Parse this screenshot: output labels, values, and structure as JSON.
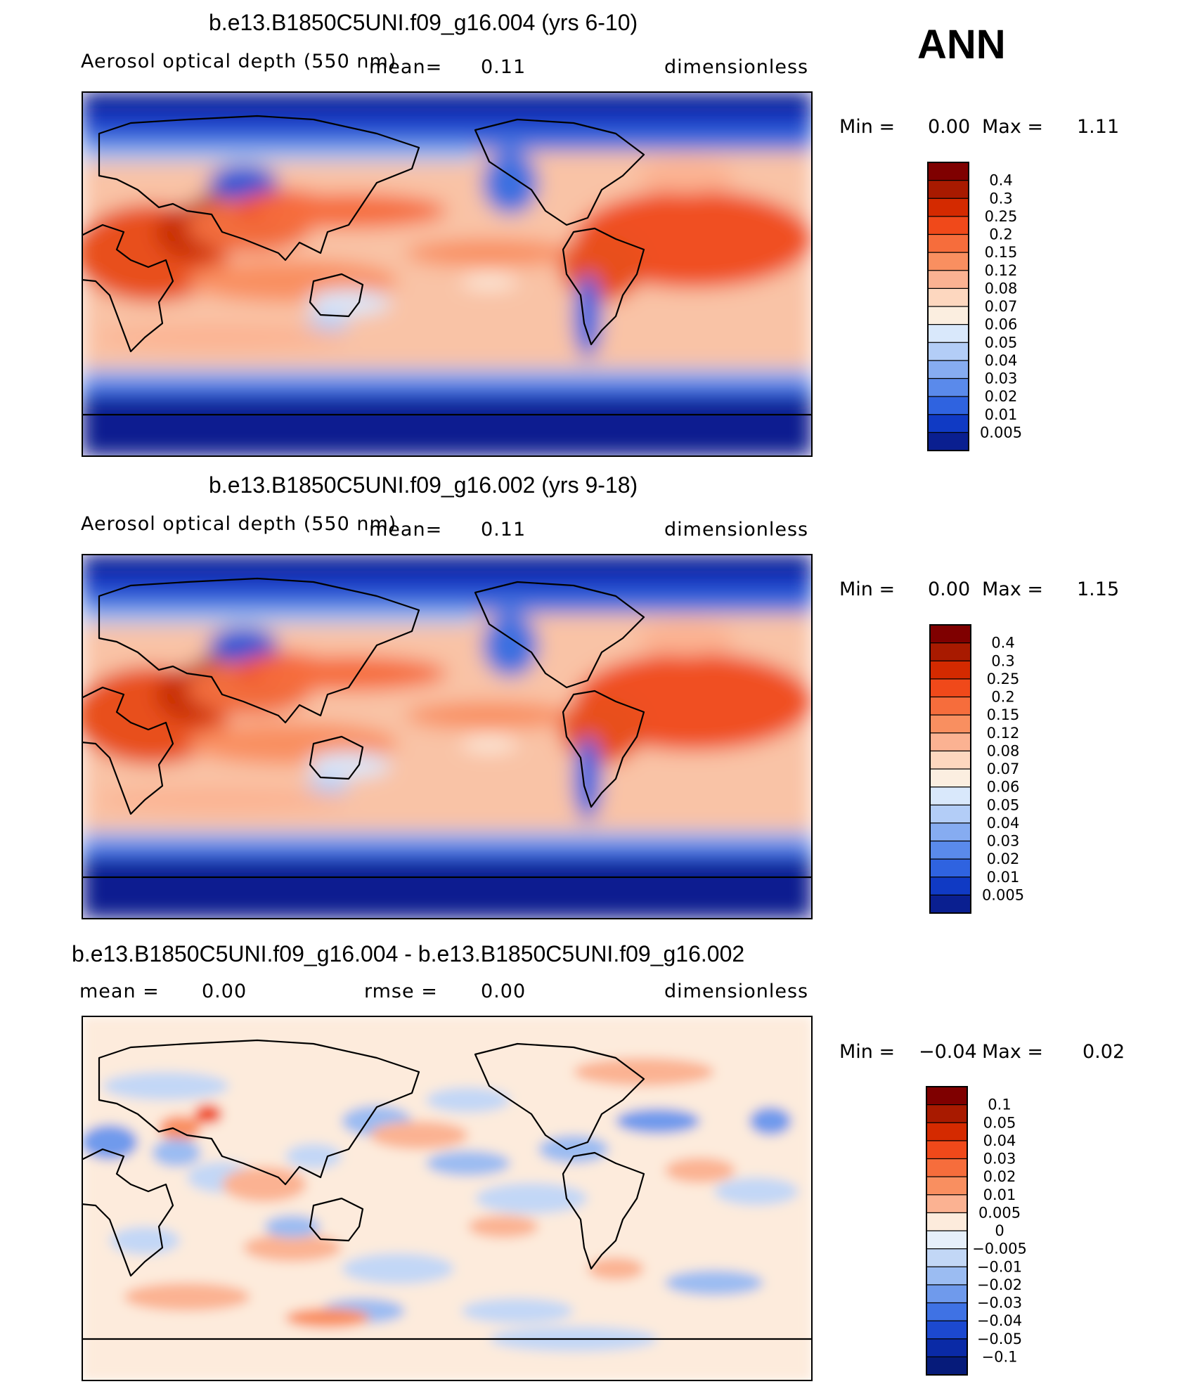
{
  "season": "ANN",
  "panels": [
    {
      "title": "b.e13.B1850C5UNI.f09_g16.004 (yrs 6-10)",
      "left_label": "Aerosol optical depth (550 nm)",
      "mean_label": "mean=",
      "mean_value": "0.11",
      "units": "dimensionless",
      "min_label": "Min =",
      "min_value": "0.00",
      "max_label": "Max =",
      "max_value": "1.11"
    },
    {
      "title": "b.e13.B1850C5UNI.f09_g16.002 (yrs 9-18)",
      "left_label": "Aerosol optical depth (550 nm)",
      "mean_label": "mean=",
      "mean_value": "0.11",
      "units": "dimensionless",
      "min_label": "Min =",
      "min_value": "0.00",
      "max_label": "Max =",
      "max_value": "1.15"
    },
    {
      "title": "b.e13.B1850C5UNI.f09_g16.004 - b.e13.B1850C5UNI.f09_g16.002",
      "left_label": "mean =",
      "mean_label": "rmse =",
      "mean_value": "0.00",
      "left_value": "0.00",
      "units": "dimensionless",
      "min_label": "Min =",
      "min_value": "−0.04",
      "max_label": "Max =",
      "max_value": "0.02"
    }
  ],
  "chart_data": [
    {
      "type": "heatmap",
      "title": "b.e13.B1850C5UNI.f09_g16.004 (yrs 6-10)",
      "variable": "Aerosol optical depth (550 nm)",
      "units": "dimensionless",
      "mean": 0.11,
      "min": 0.0,
      "max": 1.11,
      "colorbar_levels": [
        "0.4",
        "0.3",
        "0.25",
        "0.2",
        "0.15",
        "0.12",
        "0.08",
        "0.07",
        "0.06",
        "0.05",
        "0.04",
        "0.03",
        "0.02",
        "0.01",
        "0.005"
      ],
      "colorbar_colors": [
        "#7f0000",
        "#a81a00",
        "#d42a00",
        "#f0491a",
        "#f66d3c",
        "#f98f60",
        "#fbb292",
        "#fdd7bf",
        "#fbeee0",
        "#d9e8fb",
        "#b3cdf7",
        "#86acf1",
        "#5a8aeb",
        "#2f63e0",
        "#103ac4",
        "#0a1f90"
      ]
    },
    {
      "type": "heatmap",
      "title": "b.e13.B1850C5UNI.f09_g16.002 (yrs 9-18)",
      "variable": "Aerosol optical depth (550 nm)",
      "units": "dimensionless",
      "mean": 0.11,
      "min": 0.0,
      "max": 1.15,
      "colorbar_levels": [
        "0.4",
        "0.3",
        "0.25",
        "0.2",
        "0.15",
        "0.12",
        "0.08",
        "0.07",
        "0.06",
        "0.05",
        "0.04",
        "0.03",
        "0.02",
        "0.01",
        "0.005"
      ],
      "colorbar_colors": [
        "#7f0000",
        "#a81a00",
        "#d42a00",
        "#f0491a",
        "#f66d3c",
        "#f98f60",
        "#fbb292",
        "#fdd7bf",
        "#fbeee0",
        "#d9e8fb",
        "#b3cdf7",
        "#86acf1",
        "#5a8aeb",
        "#2f63e0",
        "#103ac4",
        "#0a1f90"
      ]
    },
    {
      "type": "heatmap",
      "title": "b.e13.B1850C5UNI.f09_g16.004 - b.e13.B1850C5UNI.f09_g16.002",
      "units": "dimensionless",
      "mean": 0.0,
      "rmse": 0.0,
      "min": -0.04,
      "max": 0.02,
      "colorbar_levels": [
        "0.1",
        "0.05",
        "0.04",
        "0.03",
        "0.02",
        "0.01",
        "0.005",
        "0",
        "−0.005",
        "−0.01",
        "−0.02",
        "−0.03",
        "−0.04",
        "−0.05",
        "−0.1"
      ],
      "colorbar_colors": [
        "#7f0000",
        "#a81a00",
        "#d42a00",
        "#f0491a",
        "#f66d3c",
        "#f98f60",
        "#fbb292",
        "#fdebdc",
        "#e6effa",
        "#c2d7f6",
        "#9bbcf2",
        "#6f9aec",
        "#3f72e4",
        "#1c49d0",
        "#0a2aa6",
        "#061b7a"
      ]
    }
  ]
}
